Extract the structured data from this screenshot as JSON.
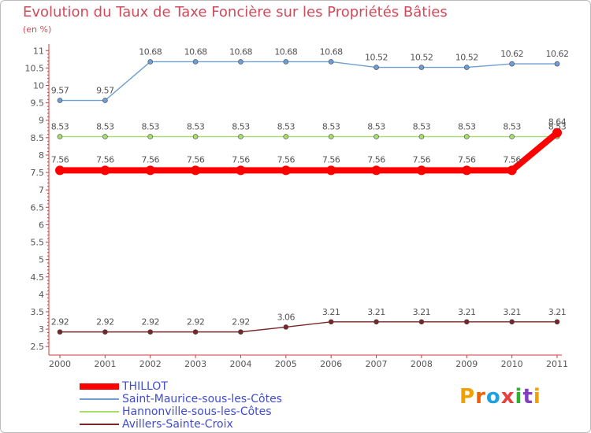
{
  "chart_data": {
    "type": "line",
    "title": "Evolution du Taux de Taxe Foncière sur les Propriétés Bâties",
    "subtitle": "(en %)",
    "x": [
      "2000",
      "2001",
      "2002",
      "2003",
      "2004",
      "2005",
      "2006",
      "2007",
      "2008",
      "2009",
      "2010",
      "2011"
    ],
    "ylim": [
      2.5,
      11
    ],
    "yticks": [
      "2.5",
      "3",
      "3.5",
      "4",
      "4.5",
      "5",
      "5.5",
      "6",
      "6.5",
      "7",
      "7.5",
      "8",
      "8.5",
      "9",
      "9.5",
      "10",
      "10.5",
      "11"
    ],
    "series": [
      {
        "name": "THILLOT",
        "color": "#ff0000",
        "values": [
          7.56,
          7.56,
          7.56,
          7.56,
          7.56,
          7.56,
          7.56,
          7.56,
          7.56,
          7.56,
          7.56,
          8.64
        ],
        "labels": [
          "7.56",
          "7.56",
          "7.56",
          "7.56",
          "7.56",
          "7.56",
          "7.56",
          "7.56",
          "7.56",
          "7.56",
          "7.56",
          "8.64"
        ]
      },
      {
        "name": "Saint-Maurice-sous-les-Côtes",
        "color": "#6e9fd2",
        "values": [
          9.57,
          9.57,
          10.68,
          10.68,
          10.68,
          10.68,
          10.68,
          10.52,
          10.52,
          10.52,
          10.62,
          10.62
        ],
        "labels": [
          "9.57",
          "9.57",
          "10.68",
          "10.68",
          "10.68",
          "10.68",
          "10.68",
          "10.52",
          "10.52",
          "10.52",
          "10.62",
          "10.62"
        ]
      },
      {
        "name": "Hannonville-sous-les-Côtes",
        "color": "#a6e06a",
        "values": [
          8.53,
          8.53,
          8.53,
          8.53,
          8.53,
          8.53,
          8.53,
          8.53,
          8.53,
          8.53,
          8.53,
          8.53
        ],
        "labels": [
          "8.53",
          "8.53",
          "8.53",
          "8.53",
          "8.53",
          "8.53",
          "8.53",
          "8.53",
          "8.53",
          "8.53",
          "8.53",
          "8.53"
        ]
      },
      {
        "name": "Avillers-Sainte-Croix",
        "color": "#7a2626",
        "values": [
          2.92,
          2.92,
          2.92,
          2.92,
          2.92,
          3.06,
          3.21,
          3.21,
          3.21,
          3.21,
          3.21,
          3.21
        ],
        "labels": [
          "2.92",
          "2.92",
          "2.92",
          "2.92",
          "2.92",
          "3.06",
          "3.21",
          "3.21",
          "3.21",
          "3.21",
          "3.21",
          "3.21"
        ]
      }
    ],
    "legend": [
      "THILLOT",
      "Saint-Maurice-sous-les-Côtes",
      "Hannonville-sous-les-Côtes",
      "Avillers-Sainte-Croix"
    ],
    "legend_position": "bottom-left",
    "grid": false
  },
  "logo": {
    "letters": [
      "P",
      "r",
      "o",
      "x",
      "i",
      "t",
      "i"
    ],
    "colors": [
      "#f0a000",
      "#f06000",
      "#20a0e0",
      "#e84040",
      "#30b030",
      "#8040c0",
      "#f0a000"
    ]
  }
}
